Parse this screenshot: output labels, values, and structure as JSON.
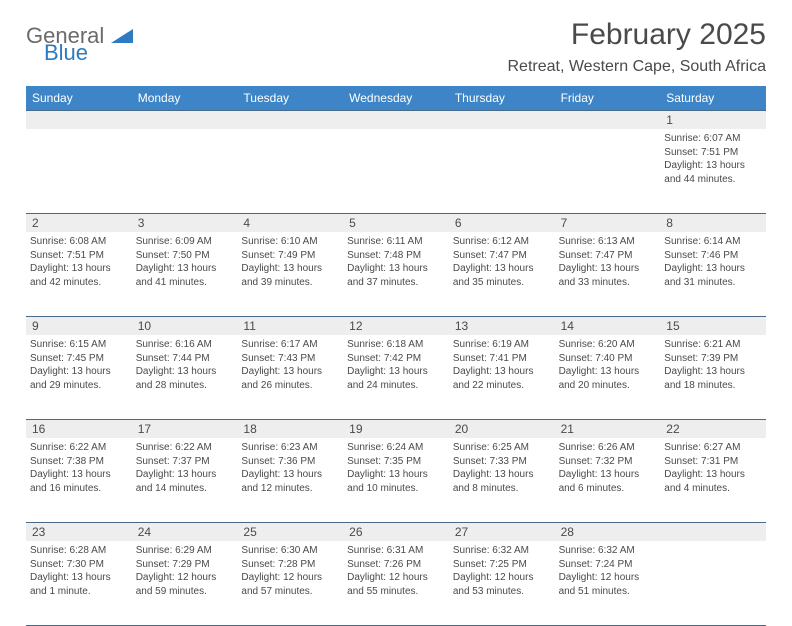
{
  "logo": {
    "general": "General",
    "blue": "Blue"
  },
  "title": "February 2025",
  "location": "Retreat, Western Cape, South Africa",
  "colors": {
    "headerBg": "#3d85c6",
    "headerText": "#ffffff",
    "grayRow": "#eeeeee",
    "border": "#4a6a8a",
    "text": "#4a4a4a",
    "logoBlue": "#2f7ac0"
  },
  "dayNames": [
    "Sunday",
    "Monday",
    "Tuesday",
    "Wednesday",
    "Thursday",
    "Friday",
    "Saturday"
  ],
  "weeks": [
    [
      null,
      null,
      null,
      null,
      null,
      null,
      {
        "n": "1",
        "sr": "Sunrise: 6:07 AM",
        "ss": "Sunset: 7:51 PM",
        "dl": "Daylight: 13 hours and 44 minutes."
      }
    ],
    [
      {
        "n": "2",
        "sr": "Sunrise: 6:08 AM",
        "ss": "Sunset: 7:51 PM",
        "dl": "Daylight: 13 hours and 42 minutes."
      },
      {
        "n": "3",
        "sr": "Sunrise: 6:09 AM",
        "ss": "Sunset: 7:50 PM",
        "dl": "Daylight: 13 hours and 41 minutes."
      },
      {
        "n": "4",
        "sr": "Sunrise: 6:10 AM",
        "ss": "Sunset: 7:49 PM",
        "dl": "Daylight: 13 hours and 39 minutes."
      },
      {
        "n": "5",
        "sr": "Sunrise: 6:11 AM",
        "ss": "Sunset: 7:48 PM",
        "dl": "Daylight: 13 hours and 37 minutes."
      },
      {
        "n": "6",
        "sr": "Sunrise: 6:12 AM",
        "ss": "Sunset: 7:47 PM",
        "dl": "Daylight: 13 hours and 35 minutes."
      },
      {
        "n": "7",
        "sr": "Sunrise: 6:13 AM",
        "ss": "Sunset: 7:47 PM",
        "dl": "Daylight: 13 hours and 33 minutes."
      },
      {
        "n": "8",
        "sr": "Sunrise: 6:14 AM",
        "ss": "Sunset: 7:46 PM",
        "dl": "Daylight: 13 hours and 31 minutes."
      }
    ],
    [
      {
        "n": "9",
        "sr": "Sunrise: 6:15 AM",
        "ss": "Sunset: 7:45 PM",
        "dl": "Daylight: 13 hours and 29 minutes."
      },
      {
        "n": "10",
        "sr": "Sunrise: 6:16 AM",
        "ss": "Sunset: 7:44 PM",
        "dl": "Daylight: 13 hours and 28 minutes."
      },
      {
        "n": "11",
        "sr": "Sunrise: 6:17 AM",
        "ss": "Sunset: 7:43 PM",
        "dl": "Daylight: 13 hours and 26 minutes."
      },
      {
        "n": "12",
        "sr": "Sunrise: 6:18 AM",
        "ss": "Sunset: 7:42 PM",
        "dl": "Daylight: 13 hours and 24 minutes."
      },
      {
        "n": "13",
        "sr": "Sunrise: 6:19 AM",
        "ss": "Sunset: 7:41 PM",
        "dl": "Daylight: 13 hours and 22 minutes."
      },
      {
        "n": "14",
        "sr": "Sunrise: 6:20 AM",
        "ss": "Sunset: 7:40 PM",
        "dl": "Daylight: 13 hours and 20 minutes."
      },
      {
        "n": "15",
        "sr": "Sunrise: 6:21 AM",
        "ss": "Sunset: 7:39 PM",
        "dl": "Daylight: 13 hours and 18 minutes."
      }
    ],
    [
      {
        "n": "16",
        "sr": "Sunrise: 6:22 AM",
        "ss": "Sunset: 7:38 PM",
        "dl": "Daylight: 13 hours and 16 minutes."
      },
      {
        "n": "17",
        "sr": "Sunrise: 6:22 AM",
        "ss": "Sunset: 7:37 PM",
        "dl": "Daylight: 13 hours and 14 minutes."
      },
      {
        "n": "18",
        "sr": "Sunrise: 6:23 AM",
        "ss": "Sunset: 7:36 PM",
        "dl": "Daylight: 13 hours and 12 minutes."
      },
      {
        "n": "19",
        "sr": "Sunrise: 6:24 AM",
        "ss": "Sunset: 7:35 PM",
        "dl": "Daylight: 13 hours and 10 minutes."
      },
      {
        "n": "20",
        "sr": "Sunrise: 6:25 AM",
        "ss": "Sunset: 7:33 PM",
        "dl": "Daylight: 13 hours and 8 minutes."
      },
      {
        "n": "21",
        "sr": "Sunrise: 6:26 AM",
        "ss": "Sunset: 7:32 PM",
        "dl": "Daylight: 13 hours and 6 minutes."
      },
      {
        "n": "22",
        "sr": "Sunrise: 6:27 AM",
        "ss": "Sunset: 7:31 PM",
        "dl": "Daylight: 13 hours and 4 minutes."
      }
    ],
    [
      {
        "n": "23",
        "sr": "Sunrise: 6:28 AM",
        "ss": "Sunset: 7:30 PM",
        "dl": "Daylight: 13 hours and 1 minute."
      },
      {
        "n": "24",
        "sr": "Sunrise: 6:29 AM",
        "ss": "Sunset: 7:29 PM",
        "dl": "Daylight: 12 hours and 59 minutes."
      },
      {
        "n": "25",
        "sr": "Sunrise: 6:30 AM",
        "ss": "Sunset: 7:28 PM",
        "dl": "Daylight: 12 hours and 57 minutes."
      },
      {
        "n": "26",
        "sr": "Sunrise: 6:31 AM",
        "ss": "Sunset: 7:26 PM",
        "dl": "Daylight: 12 hours and 55 minutes."
      },
      {
        "n": "27",
        "sr": "Sunrise: 6:32 AM",
        "ss": "Sunset: 7:25 PM",
        "dl": "Daylight: 12 hours and 53 minutes."
      },
      {
        "n": "28",
        "sr": "Sunrise: 6:32 AM",
        "ss": "Sunset: 7:24 PM",
        "dl": "Daylight: 12 hours and 51 minutes."
      },
      null
    ]
  ]
}
